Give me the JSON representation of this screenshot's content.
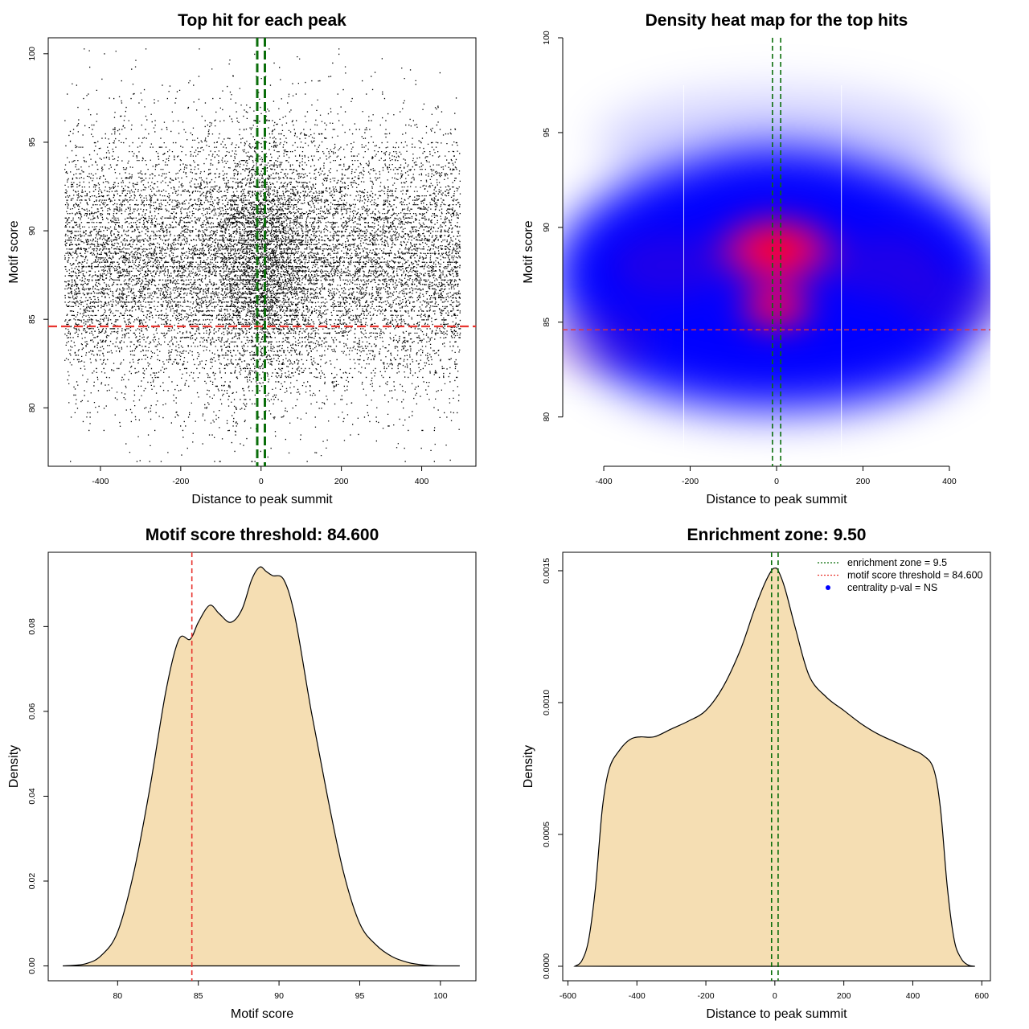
{
  "chart_data": [
    {
      "type": "scatter",
      "title": "Top hit for each peak",
      "xlabel": "Distance to peak summit",
      "ylabel": "Motif score",
      "xlim": [
        -530,
        535
      ],
      "ylim": [
        76.7,
        100.9
      ],
      "xticks": [
        -400,
        -200,
        0,
        200,
        400
      ],
      "yticks": [
        80,
        85,
        90,
        95,
        100
      ],
      "point_count": 16000,
      "x_range": [
        -490,
        495
      ],
      "score_mean": 88.3,
      "score_sd": 3.6,
      "hlines": [
        {
          "value": 84.6,
          "color": "#e8342f",
          "style": "dashed"
        }
      ],
      "vlines": [
        {
          "value": -9.5,
          "color": "#0a6e0a",
          "style": "dashed"
        },
        {
          "value": 9.5,
          "color": "#0a6e0a",
          "style": "dashed"
        }
      ]
    },
    {
      "type": "heatmap",
      "title": "Density heat map for the top hits",
      "xlabel": "Distance to peak summit",
      "ylabel": "Motif score",
      "xlim": [
        -495,
        495
      ],
      "ylim": [
        77.4,
        100.0
      ],
      "xticks": [
        -400,
        -200,
        0,
        200,
        400
      ],
      "yticks": [
        80,
        85,
        90,
        95,
        100
      ],
      "color_low": "#ffffff",
      "color_mid": "#0000ff",
      "color_high": "#ff0000",
      "density_centers": [
        {
          "x": 0,
          "y": 88.8,
          "weight": 1.0
        },
        {
          "x": 0,
          "y": 85.8,
          "weight": 0.75
        },
        {
          "x": -250,
          "y": 88.0,
          "weight": 0.35
        },
        {
          "x": 250,
          "y": 88.0,
          "weight": 0.35
        },
        {
          "x": -420,
          "y": 84.0,
          "weight": 0.3
        },
        {
          "x": 420,
          "y": 86.0,
          "weight": 0.3
        }
      ],
      "hlines": [
        {
          "value": 84.6,
          "color": "#e8342f",
          "style": "dashed"
        }
      ],
      "vlines": [
        {
          "value": -9.5,
          "color": "#0a6e0a",
          "style": "dashed"
        },
        {
          "value": 9.5,
          "color": "#0a6e0a",
          "style": "dashed"
        }
      ]
    },
    {
      "type": "area",
      "title": "Motif score threshold: 84.600",
      "xlabel": "Motif score",
      "ylabel": "Density",
      "xlim": [
        75.7,
        102.2
      ],
      "ylim": [
        -0.0035,
        0.0975
      ],
      "xticks": [
        80,
        85,
        90,
        95,
        100
      ],
      "yticks": [
        0.0,
        0.02,
        0.04,
        0.06,
        0.08
      ],
      "ytick_labels": [
        "0.00",
        "0.02",
        "0.04",
        "0.06",
        "0.08"
      ],
      "fill_color": "#f5deb3",
      "x": [
        76.6,
        78.0,
        79.0,
        80.0,
        81.0,
        82.0,
        83.0,
        83.8,
        84.5,
        85.0,
        85.7,
        86.3,
        87.0,
        87.7,
        88.3,
        88.8,
        89.2,
        89.6,
        90.3,
        91.0,
        92.0,
        93.0,
        94.0,
        95.0,
        96.0,
        97.0,
        98.0,
        99.0,
        100.0,
        101.2
      ],
      "y": [
        0.0,
        0.0005,
        0.0025,
        0.008,
        0.022,
        0.042,
        0.065,
        0.077,
        0.077,
        0.081,
        0.085,
        0.083,
        0.081,
        0.084,
        0.091,
        0.094,
        0.093,
        0.092,
        0.091,
        0.082,
        0.06,
        0.04,
        0.022,
        0.01,
        0.005,
        0.0022,
        0.0008,
        0.0002,
        0.0,
        0.0
      ],
      "vlines": [
        {
          "value": 84.6,
          "color": "#e8342f",
          "style": "dashed"
        }
      ]
    },
    {
      "type": "area",
      "title": "Enrichment zone: 9.50",
      "xlabel": "Distance to peak summit",
      "ylabel": "Density",
      "xlim": [
        -615,
        625
      ],
      "ylim": [
        -5.5e-05,
        0.00157
      ],
      "xticks": [
        -600,
        -400,
        -200,
        0,
        200,
        400,
        600
      ],
      "yticks": [
        0.0,
        0.0005,
        0.001,
        0.0015
      ],
      "ytick_labels": [
        "0.0000",
        "0.0005",
        "0.0010",
        "0.0015"
      ],
      "fill_color": "#f5deb3",
      "x": [
        -580,
        -560,
        -540,
        -520,
        -500,
        -480,
        -450,
        -420,
        -390,
        -350,
        -300,
        -250,
        -200,
        -150,
        -100,
        -60,
        -30,
        -10,
        0,
        10,
        30,
        60,
        100,
        150,
        200,
        250,
        300,
        350,
        400,
        430,
        460,
        480,
        500,
        520,
        540,
        560,
        580
      ],
      "y": [
        0.0,
        2e-05,
        0.0001,
        0.0003,
        0.0006,
        0.00075,
        0.00082,
        0.00086,
        0.00087,
        0.00087,
        0.0009,
        0.00093,
        0.00097,
        0.00106,
        0.0012,
        0.00135,
        0.00145,
        0.0015,
        0.00151,
        0.0015,
        0.00143,
        0.00128,
        0.0011,
        0.00102,
        0.00097,
        0.00092,
        0.00088,
        0.00085,
        0.00082,
        0.0008,
        0.00075,
        0.0006,
        0.0003,
        0.0001,
        3e-05,
        5e-06,
        0.0
      ],
      "vlines": [
        {
          "value": -9.5,
          "color": "#0a6e0a",
          "style": "dashed"
        },
        {
          "value": 9.5,
          "color": "#0a6e0a",
          "style": "dashed"
        }
      ],
      "legend": [
        {
          "label": "enrichment zone = 9.5",
          "color": "#0a6e0a",
          "symbol": "dotted-line"
        },
        {
          "label": "motif score threshold = 84.600",
          "color": "#e8342f",
          "symbol": "dotted-line"
        },
        {
          "label": "centrality p-val = NS",
          "color": "#0000ff",
          "symbol": "point"
        }
      ],
      "legend_position": "top-right"
    }
  ]
}
